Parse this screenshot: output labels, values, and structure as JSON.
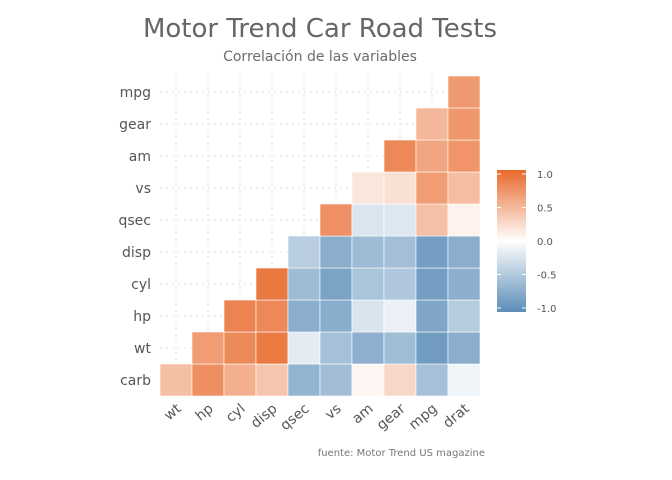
{
  "chart_data": {
    "type": "heatmap",
    "title": "Motor Trend Car Road Tests",
    "subtitle": "Correlación de las variables",
    "caption": "fuente: Motor Trend US magazine",
    "x_categories": [
      "wt",
      "hp",
      "cyl",
      "disp",
      "qsec",
      "vs",
      "am",
      "gear",
      "mpg",
      "drat"
    ],
    "y_categories": [
      "carb",
      "wt",
      "hp",
      "cyl",
      "disp",
      "qsec",
      "vs",
      "am",
      "gear",
      "mpg"
    ],
    "cells": [
      {
        "x": "wt",
        "y": "carb",
        "value": 0.43
      },
      {
        "x": "hp",
        "y": "carb",
        "value": 0.75
      },
      {
        "x": "cyl",
        "y": "carb",
        "value": 0.53
      },
      {
        "x": "disp",
        "y": "carb",
        "value": 0.39
      },
      {
        "x": "qsec",
        "y": "carb",
        "value": -0.66
      },
      {
        "x": "vs",
        "y": "carb",
        "value": -0.57
      },
      {
        "x": "am",
        "y": "carb",
        "value": 0.06
      },
      {
        "x": "gear",
        "y": "carb",
        "value": 0.27
      },
      {
        "x": "mpg",
        "y": "carb",
        "value": -0.55
      },
      {
        "x": "drat",
        "y": "carb",
        "value": -0.09
      },
      {
        "x": "hp",
        "y": "wt",
        "value": 0.66
      },
      {
        "x": "cyl",
        "y": "wt",
        "value": 0.78
      },
      {
        "x": "disp",
        "y": "wt",
        "value": 0.89
      },
      {
        "x": "qsec",
        "y": "wt",
        "value": -0.17
      },
      {
        "x": "vs",
        "y": "wt",
        "value": -0.55
      },
      {
        "x": "am",
        "y": "wt",
        "value": -0.69
      },
      {
        "x": "gear",
        "y": "wt",
        "value": -0.58
      },
      {
        "x": "mpg",
        "y": "wt",
        "value": -0.87
      },
      {
        "x": "drat",
        "y": "wt",
        "value": -0.71
      },
      {
        "x": "cyl",
        "y": "hp",
        "value": 0.83
      },
      {
        "x": "disp",
        "y": "hp",
        "value": 0.79
      },
      {
        "x": "qsec",
        "y": "hp",
        "value": -0.71
      },
      {
        "x": "vs",
        "y": "hp",
        "value": -0.72
      },
      {
        "x": "am",
        "y": "hp",
        "value": -0.24
      },
      {
        "x": "gear",
        "y": "hp",
        "value": -0.13
      },
      {
        "x": "mpg",
        "y": "hp",
        "value": -0.78
      },
      {
        "x": "drat",
        "y": "hp",
        "value": -0.45
      },
      {
        "x": "disp",
        "y": "cyl",
        "value": 0.9
      },
      {
        "x": "qsec",
        "y": "cyl",
        "value": -0.59
      },
      {
        "x": "vs",
        "y": "cyl",
        "value": -0.81
      },
      {
        "x": "am",
        "y": "cyl",
        "value": -0.52
      },
      {
        "x": "gear",
        "y": "cyl",
        "value": -0.49
      },
      {
        "x": "mpg",
        "y": "cyl",
        "value": -0.85
      },
      {
        "x": "drat",
        "y": "cyl",
        "value": -0.7
      },
      {
        "x": "qsec",
        "y": "disp",
        "value": -0.43
      },
      {
        "x": "vs",
        "y": "disp",
        "value": -0.71
      },
      {
        "x": "am",
        "y": "disp",
        "value": -0.59
      },
      {
        "x": "gear",
        "y": "disp",
        "value": -0.56
      },
      {
        "x": "mpg",
        "y": "disp",
        "value": -0.85
      },
      {
        "x": "drat",
        "y": "disp",
        "value": -0.71
      },
      {
        "x": "vs",
        "y": "qsec",
        "value": 0.74
      },
      {
        "x": "am",
        "y": "qsec",
        "value": -0.23
      },
      {
        "x": "gear",
        "y": "qsec",
        "value": -0.21
      },
      {
        "x": "mpg",
        "y": "qsec",
        "value": 0.42
      },
      {
        "x": "drat",
        "y": "qsec",
        "value": 0.09
      },
      {
        "x": "am",
        "y": "vs",
        "value": 0.17
      },
      {
        "x": "gear",
        "y": "vs",
        "value": 0.21
      },
      {
        "x": "mpg",
        "y": "vs",
        "value": 0.66
      },
      {
        "x": "drat",
        "y": "vs",
        "value": 0.44
      },
      {
        "x": "gear",
        "y": "am",
        "value": 0.79
      },
      {
        "x": "mpg",
        "y": "am",
        "value": 0.6
      },
      {
        "x": "drat",
        "y": "am",
        "value": 0.71
      },
      {
        "x": "mpg",
        "y": "gear",
        "value": 0.48
      },
      {
        "x": "drat",
        "y": "gear",
        "value": 0.7
      },
      {
        "x": "drat",
        "y": "mpg",
        "value": 0.68
      }
    ],
    "color_scale": {
      "low_color": "#5b8db8",
      "mid_color": "#ffffff",
      "high_color": "#e8692c",
      "limits": [
        -1,
        1
      ],
      "breaks": [
        "1.0",
        "0.5",
        "0.0",
        "-0.5",
        "-1.0"
      ]
    },
    "legend_position": "right",
    "grid": true
  }
}
